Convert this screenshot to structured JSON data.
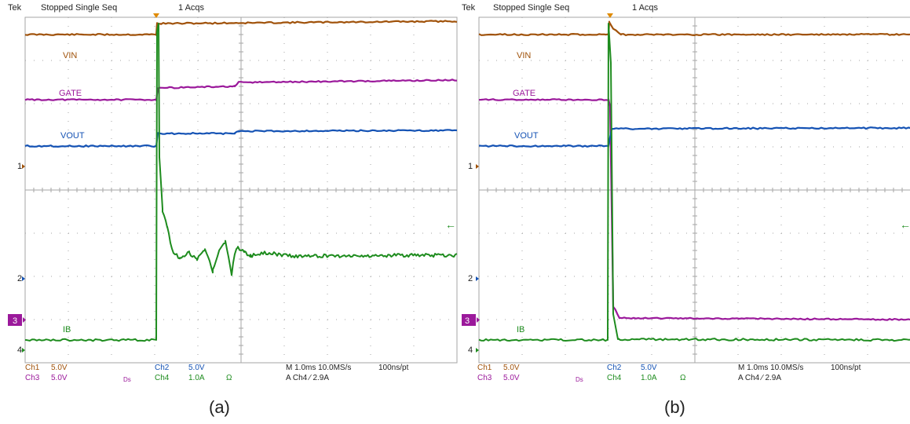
{
  "colors": {
    "vin": "#a0520a",
    "gate": "#9b199b",
    "vout": "#1452b4",
    "ib": "#1e8c1e",
    "trigger": "#e08a00",
    "grid": "#a6a6a6",
    "text": "#222222"
  },
  "panels": [
    {
      "id": "a",
      "caption": "(a)",
      "header": {
        "brand": "Tek",
        "status": "Stopped  Single Seq",
        "acqs": "1 Acqs"
      },
      "labels": {
        "vin": "VIN",
        "gate": "GATE",
        "vout": "VOUT",
        "ib": "IB"
      },
      "markers": {
        "m1": "1",
        "m2": "2",
        "m3": "3",
        "m4": "4",
        "right_arrow": "←"
      },
      "readout": {
        "ch1": "Ch1",
        "ch1_scale": "5.0V",
        "ch3": "Ch3",
        "ch3_scale": "5.0V",
        "bw": "Ds",
        "ch2": "Ch2",
        "ch2_scale": "5.0V",
        "ch4": "Ch4",
        "ch4_scale": "1.0A",
        "ohm": "Ω",
        "timebase": "M 1.0ms 10.0MS/s",
        "pt": "100ns/pt",
        "trig": "A  Ch4  ⁄  2.9A"
      }
    },
    {
      "id": "b",
      "caption": "(b)",
      "header": {
        "brand": "Tek",
        "status": "Stopped  Single Seq",
        "acqs": "1 Acqs"
      },
      "labels": {
        "vin": "VIN",
        "gate": "GATE",
        "vout": "VOUT",
        "ib": "IB"
      },
      "markers": {
        "m1": "1",
        "m2": "2",
        "m3": "3",
        "m4": "4",
        "right_arrow": "←"
      },
      "readout": {
        "ch1": "Ch1",
        "ch1_scale": "5.0V",
        "ch3": "Ch3",
        "ch3_scale": "5.0V",
        "bw": "Ds",
        "ch2": "Ch2",
        "ch2_scale": "5.0V",
        "ch4": "Ch4",
        "ch4_scale": "1.0A",
        "ohm": "Ω",
        "timebase": "M 1.0ms 10.0MS/s",
        "pt": "100ns/pt",
        "trig": "A  Ch4  ⁄  2.9A"
      }
    }
  ]
}
